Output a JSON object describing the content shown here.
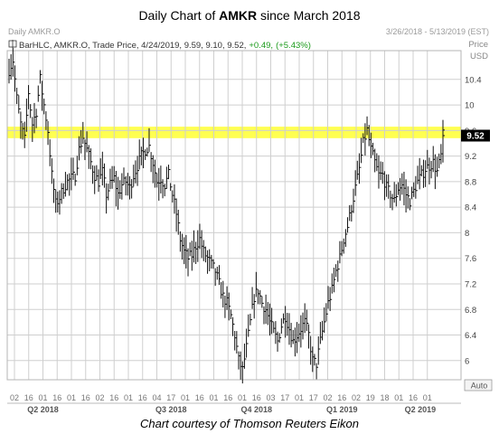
{
  "header": {
    "title_prefix": "Daily Chart of ",
    "title_ticker": "AMKR",
    "title_suffix": " since March 2018",
    "caption": "Chart courtesy of Thomson Reuters Eikon"
  },
  "chart_data": {
    "type": "ohlc",
    "panel_title": "Daily AMKR.O",
    "date_range": "3/26/2018 - 5/13/2019 (EST)",
    "legend": {
      "text": "BarHLC, AMKR.O, Trade Price, 4/24/2019, 9.59, 9.10, 9.52,",
      "change": "+0.49,",
      "change_pct": "(+5.43%)"
    },
    "axis_unit": "Price USD",
    "y_unit_label": "Price",
    "y_currency_label": "USD",
    "scale_mode": "Auto",
    "ylim": [
      5.7,
      10.85
    ],
    "y_ticks": [
      "10.4",
      "10",
      "9.6",
      "9.2",
      "8.8",
      "8.4",
      "8",
      "7.6",
      "7.2",
      "6.8",
      "6.4",
      "6"
    ],
    "last_price_label": "9.52",
    "last_price": 9.52,
    "resistance_band": [
      9.48,
      9.66
    ],
    "x_ticks": [
      "02",
      "16",
      "01",
      "16",
      "01",
      "16",
      "02",
      "16",
      "01",
      "16",
      "04",
      "17",
      "01",
      "16",
      "01",
      "16",
      "01",
      "16",
      "03",
      "17",
      "01",
      "17",
      "02",
      "16",
      "02",
      "19",
      "18",
      "01",
      "16",
      "01"
    ],
    "quarters": [
      "Q2 2018",
      "Q3 2018",
      "Q4 2018",
      "Q1 2019",
      "Q2 2019"
    ],
    "series": [
      {
        "keypoints": [
          [
            0,
            10.55
          ],
          [
            2,
            10.7
          ],
          [
            4,
            10.1
          ],
          [
            6,
            9.7
          ],
          [
            8,
            9.45
          ],
          [
            10,
            10.2
          ],
          [
            12,
            9.7
          ],
          [
            14,
            9.9
          ],
          [
            16,
            10.4
          ],
          [
            18,
            10.0
          ],
          [
            20,
            9.6
          ],
          [
            22,
            8.9
          ],
          [
            24,
            8.45
          ],
          [
            26,
            8.55
          ],
          [
            28,
            8.7
          ],
          [
            30,
            8.8
          ],
          [
            32,
            8.85
          ],
          [
            34,
            8.9
          ],
          [
            36,
            9.3
          ],
          [
            38,
            9.5
          ],
          [
            40,
            9.3
          ],
          [
            42,
            9.1
          ],
          [
            44,
            8.9
          ],
          [
            46,
            8.8
          ],
          [
            48,
            8.95
          ],
          [
            50,
            8.6
          ],
          [
            52,
            8.75
          ],
          [
            54,
            8.85
          ],
          [
            56,
            8.6
          ],
          [
            58,
            8.75
          ],
          [
            60,
            8.8
          ],
          [
            62,
            8.7
          ],
          [
            64,
            8.9
          ],
          [
            66,
            9.05
          ],
          [
            68,
            9.2
          ],
          [
            70,
            9.3
          ],
          [
            72,
            9.35
          ],
          [
            74,
            9.1
          ],
          [
            76,
            8.8
          ],
          [
            78,
            8.85
          ],
          [
            80,
            8.75
          ],
          [
            82,
            8.9
          ],
          [
            84,
            8.6
          ],
          [
            86,
            8.3
          ],
          [
            88,
            7.9
          ],
          [
            90,
            7.7
          ],
          [
            92,
            7.6
          ],
          [
            94,
            7.65
          ],
          [
            96,
            7.8
          ],
          [
            98,
            7.9
          ],
          [
            100,
            7.7
          ],
          [
            102,
            7.6
          ],
          [
            104,
            7.5
          ],
          [
            106,
            7.4
          ],
          [
            108,
            7.2
          ],
          [
            110,
            7.0
          ],
          [
            112,
            6.9
          ],
          [
            114,
            6.7
          ],
          [
            116,
            6.4
          ],
          [
            118,
            6.0
          ],
          [
            120,
            5.85
          ],
          [
            122,
            6.2
          ],
          [
            124,
            6.6
          ],
          [
            126,
            7.0
          ],
          [
            128,
            7.1
          ],
          [
            130,
            6.9
          ],
          [
            132,
            6.8
          ],
          [
            134,
            6.6
          ],
          [
            136,
            6.45
          ],
          [
            138,
            6.3
          ],
          [
            140,
            6.55
          ],
          [
            142,
            6.7
          ],
          [
            144,
            6.5
          ],
          [
            146,
            6.3
          ],
          [
            148,
            6.4
          ],
          [
            150,
            6.5
          ],
          [
            152,
            6.6
          ],
          [
            154,
            6.4
          ],
          [
            156,
            6.0
          ],
          [
            158,
            5.95
          ],
          [
            160,
            6.3
          ],
          [
            162,
            6.6
          ],
          [
            164,
            6.9
          ],
          [
            166,
            7.1
          ],
          [
            168,
            7.4
          ],
          [
            170,
            7.6
          ],
          [
            172,
            7.9
          ],
          [
            174,
            8.1
          ],
          [
            176,
            8.4
          ],
          [
            178,
            8.7
          ],
          [
            180,
            9.0
          ],
          [
            182,
            9.4
          ],
          [
            184,
            9.6
          ],
          [
            186,
            9.3
          ],
          [
            188,
            9.1
          ],
          [
            190,
            8.9
          ],
          [
            192,
            8.9
          ],
          [
            194,
            8.7
          ],
          [
            196,
            8.6
          ],
          [
            198,
            8.5
          ],
          [
            200,
            8.7
          ],
          [
            202,
            8.75
          ],
          [
            204,
            8.6
          ],
          [
            206,
            8.5
          ],
          [
            208,
            8.65
          ],
          [
            210,
            8.8
          ],
          [
            212,
            8.9
          ],
          [
            214,
            9.0
          ],
          [
            216,
            9.05
          ],
          [
            218,
            9.1
          ],
          [
            220,
            8.95
          ],
          [
            222,
            9.2
          ],
          [
            223,
            9.52
          ]
        ]
      }
    ]
  }
}
